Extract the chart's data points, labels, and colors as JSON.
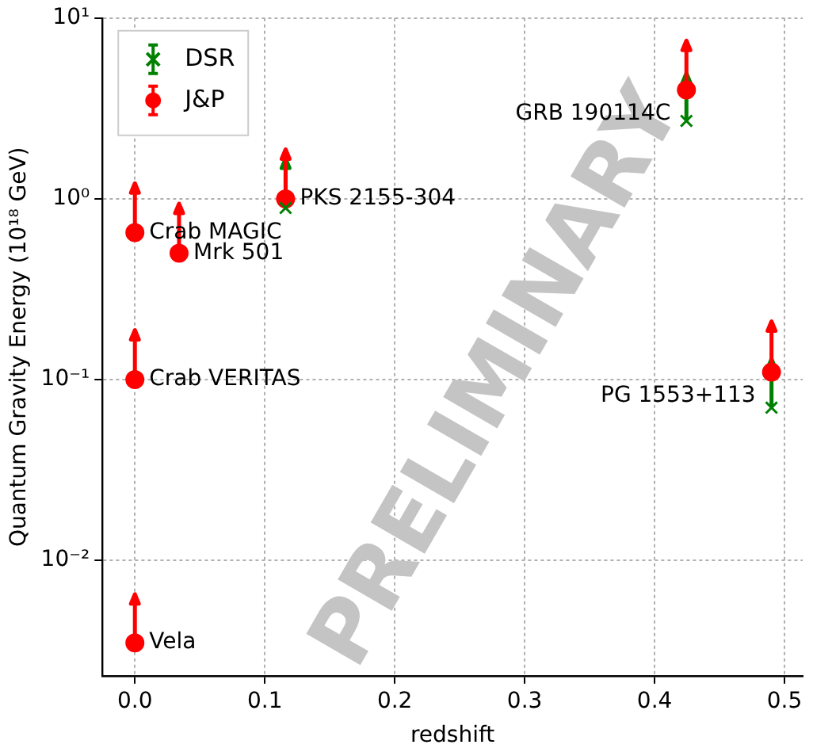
{
  "chart_data": {
    "type": "scatter",
    "xlabel": "redshift",
    "ylabel": "Quantum Gravity Energy (10¹⁸ GeV)",
    "log": "y",
    "grid": true,
    "legend": "top left",
    "xlim": [
      -0.025,
      0.514
    ],
    "xticks": [
      {
        "value": 0,
        "label": "0.0"
      },
      0.1,
      0.2,
      0.3,
      0.4,
      0.5
    ],
    "ylim": [
      0.0023,
      10
    ],
    "yticks": [
      {
        "value": 0.01,
        "label": "10⁻²"
      },
      {
        "value": 0.1,
        "label": "10⁻¹"
      },
      {
        "value": 1,
        "label": "10⁰"
      },
      {
        "value": 10,
        "label": "10¹"
      }
    ],
    "series": [
      {
        "name": "DSR",
        "color": "#008000",
        "marker": "cross",
        "x": [
          0.116,
          0.4245,
          0.49
        ],
        "values": [
          0.89,
          2.7,
          0.07
        ],
        "errors": [
          [
            0.89,
            1.67
          ],
          [
            2.7,
            4.95
          ],
          [
            0.07,
            0.13
          ]
        ]
      },
      {
        "name": "J&P",
        "color": "#ff0000",
        "marker": "circle",
        "x": [
          0,
          0,
          0,
          0.034,
          0.116,
          0.4245,
          0.49
        ],
        "values": [
          0.0035,
          0.1,
          0.65,
          0.5,
          1.0,
          4.0,
          0.11
        ],
        "errors": [
          [
            0.0035,
            0.0065
          ],
          [
            0.1,
            0.188
          ],
          [
            0.65,
            1.22
          ],
          [
            0.5,
            0.94
          ],
          [
            1.0,
            1.88
          ],
          [
            4.0,
            7.5
          ],
          [
            0.11,
            0.21
          ]
        ]
      }
    ],
    "annotations": [
      {
        "text": "Vela",
        "x": 0,
        "y": 0.0035
      },
      {
        "text": "Crab VERITAS",
        "x": 0,
        "y": 0.1
      },
      {
        "text": "Crab MAGIC",
        "x": 0,
        "y": 0.65
      },
      {
        "text": "Mrk 501",
        "x": 0.034,
        "y": 0.5
      },
      {
        "text": "PKS 2155-304",
        "x": 0.116,
        "y": 1.0
      },
      {
        "text": "GRB 190114C",
        "x": 0.4245,
        "y": 4.0
      },
      {
        "text": "PG 1553+113",
        "x": 0.49,
        "y": 0.11
      },
      "PRELIMINARY"
    ]
  }
}
